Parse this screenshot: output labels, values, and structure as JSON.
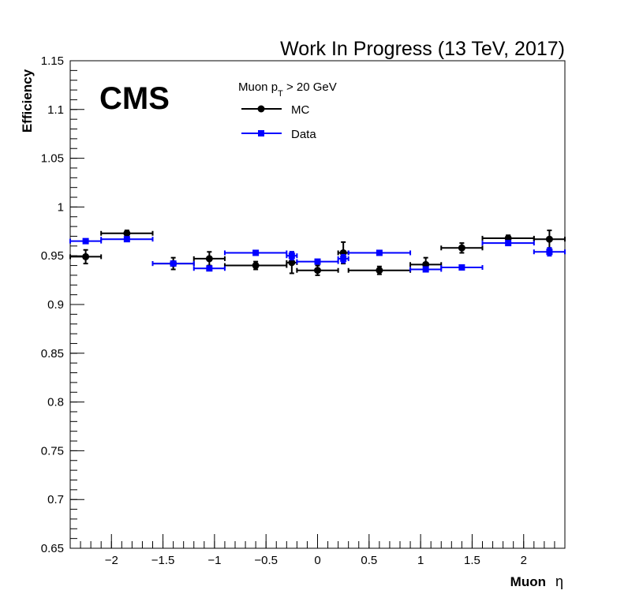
{
  "chart_data": {
    "type": "scatter",
    "title": "Work In Progress (13 TeV, 2017)",
    "logo": "CMS",
    "xlabel_main": "Muon",
    "xlabel_symbol": "η",
    "ylabel": "Efficiency",
    "legend_header": {
      "prefix": "Muon p",
      "subscript": "T",
      "suffix": " > 20 GeV"
    },
    "legend_placement": "top-center",
    "grid": false,
    "xlim": [
      -2.4,
      2.4
    ],
    "ylim": [
      0.65,
      1.15
    ],
    "x_ticks": [
      -2,
      -1.5,
      -1,
      -0.5,
      0,
      0.5,
      1,
      1.5,
      2
    ],
    "x_tick_labels": [
      "−2",
      "−1.5",
      "−1",
      "−0.5",
      "0",
      "0.5",
      "1",
      "1.5",
      "2"
    ],
    "y_ticks": [
      0.65,
      0.7,
      0.75,
      0.8,
      0.85,
      0.9,
      0.95,
      1,
      1.05,
      1.1,
      1.15
    ],
    "y_tick_labels": [
      "0.65",
      "0.7",
      "0.75",
      "0.8",
      "0.85",
      "0.9",
      "0.95",
      "1",
      "1.05",
      "1.1",
      "1.15"
    ],
    "series": [
      {
        "name": "MC",
        "color": "#000000",
        "marker": "circle",
        "points": [
          {
            "x": -2.25,
            "xlo": -2.4,
            "xhi": -2.1,
            "y": 0.949,
            "yerr": 0.007
          },
          {
            "x": -1.85,
            "xlo": -2.1,
            "xhi": -1.6,
            "y": 0.973,
            "yerr": 0.003
          },
          {
            "x": -1.4,
            "xlo": -1.6,
            "xhi": -1.2,
            "y": 0.942,
            "yerr": 0.006
          },
          {
            "x": -1.05,
            "xlo": -1.2,
            "xhi": -0.9,
            "y": 0.947,
            "yerr": 0.007
          },
          {
            "x": -0.6,
            "xlo": -0.9,
            "xhi": -0.3,
            "y": 0.94,
            "yerr": 0.004
          },
          {
            "x": -0.25,
            "xlo": -0.3,
            "xhi": -0.2,
            "y": 0.943,
            "yerr": 0.011
          },
          {
            "x": 0.0,
            "xlo": -0.2,
            "xhi": 0.2,
            "y": 0.935,
            "yerr": 0.005
          },
          {
            "x": 0.25,
            "xlo": 0.2,
            "xhi": 0.3,
            "y": 0.953,
            "yerr": 0.011
          },
          {
            "x": 0.6,
            "xlo": 0.3,
            "xhi": 0.9,
            "y": 0.935,
            "yerr": 0.004
          },
          {
            "x": 1.05,
            "xlo": 0.9,
            "xhi": 1.2,
            "y": 0.941,
            "yerr": 0.007
          },
          {
            "x": 1.4,
            "xlo": 1.2,
            "xhi": 1.6,
            "y": 0.958,
            "yerr": 0.005
          },
          {
            "x": 1.85,
            "xlo": 1.6,
            "xhi": 2.1,
            "y": 0.968,
            "yerr": 0.003
          },
          {
            "x": 2.25,
            "xlo": 2.1,
            "xhi": 2.4,
            "y": 0.967,
            "yerr": 0.009
          }
        ]
      },
      {
        "name": "Data",
        "color": "#0000ff",
        "marker": "square",
        "points": [
          {
            "x": -2.25,
            "xlo": -2.4,
            "xhi": -2.1,
            "y": 0.965,
            "yerr": 0.002
          },
          {
            "x": -1.85,
            "xlo": -2.1,
            "xhi": -1.6,
            "y": 0.967,
            "yerr": 0.002
          },
          {
            "x": -1.4,
            "xlo": -1.6,
            "xhi": -1.2,
            "y": 0.942,
            "yerr": 0.002
          },
          {
            "x": -1.05,
            "xlo": -1.2,
            "xhi": -0.9,
            "y": 0.937,
            "yerr": 0.002
          },
          {
            "x": -0.6,
            "xlo": -0.9,
            "xhi": -0.3,
            "y": 0.953,
            "yerr": 0.001
          },
          {
            "x": -0.25,
            "xlo": -0.3,
            "xhi": -0.2,
            "y": 0.95,
            "yerr": 0.004
          },
          {
            "x": 0.0,
            "xlo": -0.2,
            "xhi": 0.2,
            "y": 0.944,
            "yerr": 0.002
          },
          {
            "x": 0.25,
            "xlo": 0.2,
            "xhi": 0.3,
            "y": 0.947,
            "yerr": 0.004
          },
          {
            "x": 0.6,
            "xlo": 0.3,
            "xhi": 0.9,
            "y": 0.953,
            "yerr": 0.001
          },
          {
            "x": 1.05,
            "xlo": 0.9,
            "xhi": 1.2,
            "y": 0.936,
            "yerr": 0.002
          },
          {
            "x": 1.4,
            "xlo": 1.2,
            "xhi": 1.6,
            "y": 0.938,
            "yerr": 0.002
          },
          {
            "x": 1.85,
            "xlo": 1.6,
            "xhi": 2.1,
            "y": 0.963,
            "yerr": 0.002
          },
          {
            "x": 2.25,
            "xlo": 2.1,
            "xhi": 2.4,
            "y": 0.954,
            "yerr": 0.004
          }
        ]
      }
    ]
  }
}
